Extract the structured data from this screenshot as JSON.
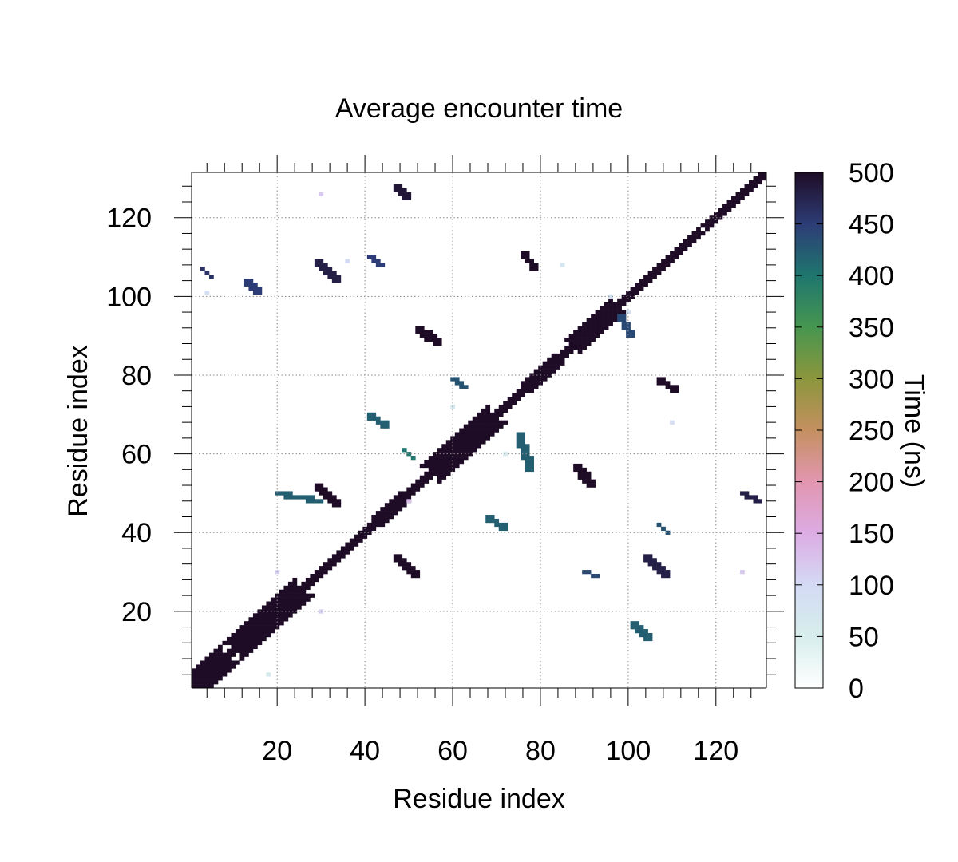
{
  "chart_data": {
    "type": "heatmap",
    "title": "Average encounter time",
    "xlabel": "Residue index",
    "ylabel": "Residue index",
    "xlim": [
      1,
      131
    ],
    "ylim": [
      1,
      131
    ],
    "x_ticks": [
      20,
      40,
      60,
      80,
      100,
      120
    ],
    "y_ticks": [
      20,
      40,
      60,
      80,
      100,
      120
    ],
    "grid": true,
    "colorbar": {
      "label": "Time (ns)",
      "min": 0,
      "max": 500,
      "ticks": [
        0,
        50,
        100,
        150,
        200,
        250,
        300,
        350,
        400,
        450,
        500
      ]
    },
    "diagonal": {
      "value": 500,
      "segments": [
        {
          "from": 1,
          "to": 5,
          "half_width": 1
        },
        {
          "from": 3,
          "to": 7,
          "half_width": 4
        },
        {
          "from": 7,
          "to": 12,
          "half_width": 1
        },
        {
          "from": 12,
          "to": 24,
          "half_width": 4
        },
        {
          "from": 24,
          "to": 44,
          "half_width": 1
        },
        {
          "from": 44,
          "to": 48,
          "half_width": 2
        },
        {
          "from": 48,
          "to": 57,
          "half_width": 1
        },
        {
          "from": 57,
          "to": 68,
          "half_width": 4
        },
        {
          "from": 68,
          "to": 78,
          "half_width": 1
        },
        {
          "from": 78,
          "to": 83,
          "half_width": 2
        },
        {
          "from": 83,
          "to": 89,
          "half_width": 1
        },
        {
          "from": 89,
          "to": 96,
          "half_width": 3
        },
        {
          "from": 96,
          "to": 116,
          "half_width": 1
        },
        {
          "from": 118,
          "to": 131,
          "half_width": 1
        }
      ]
    },
    "contact_clusters": [
      {
        "x": [
          29,
          34
        ],
        "y": [
          47,
          52
        ],
        "value": 500
      },
      {
        "x": [
          47,
          52
        ],
        "y": [
          29,
          34
        ],
        "value": 500
      },
      {
        "x": [
          29,
          34
        ],
        "y": [
          104,
          109
        ],
        "value": 480
      },
      {
        "x": [
          104,
          109
        ],
        "y": [
          29,
          34
        ],
        "value": 480
      },
      {
        "x": [
          47,
          50
        ],
        "y": [
          125,
          128
        ],
        "value": 490
      },
      {
        "x": [
          76,
          79
        ],
        "y": [
          107,
          111
        ],
        "value": 500
      },
      {
        "x": [
          107,
          111
        ],
        "y": [
          76,
          79
        ],
        "value": 500
      },
      {
        "x": [
          52,
          57
        ],
        "y": [
          88,
          92
        ],
        "value": 500
      },
      {
        "x": [
          88,
          92
        ],
        "y": [
          52,
          57
        ],
        "value": 500
      },
      {
        "x": [
          126,
          130
        ],
        "y": [
          48,
          50
        ],
        "value": 480
      },
      {
        "x": [
          41,
          44
        ],
        "y": [
          108,
          110
        ],
        "value": 450
      },
      {
        "x": [
          3,
          5
        ],
        "y": [
          105,
          107
        ],
        "value": 460
      },
      {
        "x": [
          13,
          16
        ],
        "y": [
          101,
          104
        ],
        "value": 450
      },
      {
        "x": [
          60,
          63
        ],
        "y": [
          77,
          79
        ],
        "value": 430
      },
      {
        "x": [
          107,
          109
        ],
        "y": [
          40,
          42
        ],
        "value": 430
      },
      {
        "x": [
          68,
          72
        ],
        "y": [
          41,
          44
        ],
        "value": 420
      },
      {
        "x": [
          20,
          30
        ],
        "y": [
          48,
          50
        ],
        "value": 420
      },
      {
        "x": [
          90,
          93
        ],
        "y": [
          29,
          30
        ],
        "value": 440
      },
      {
        "x": [
          101,
          105
        ],
        "y": [
          13,
          17
        ],
        "value": 420
      },
      {
        "x": [
          98,
          101
        ],
        "y": [
          90,
          95
        ],
        "value": 440
      },
      {
        "x": [
          41,
          45
        ],
        "y": [
          67,
          70
        ],
        "value": 420
      },
      {
        "x": [
          49,
          51
        ],
        "y": [
          59,
          61
        ],
        "value": 400
      },
      {
        "x": [
          75,
          78
        ],
        "y": [
          56,
          65
        ],
        "value": 420
      }
    ],
    "light_points": [
      {
        "x": 20,
        "y": 30,
        "value": 110
      },
      {
        "x": 30,
        "y": 20,
        "value": 110
      },
      {
        "x": 36,
        "y": 109,
        "value": 100
      },
      {
        "x": 60,
        "y": 72,
        "value": 60
      },
      {
        "x": 72,
        "y": 60,
        "value": 60
      },
      {
        "x": 100,
        "y": 96,
        "value": 80
      },
      {
        "x": 96,
        "y": 100,
        "value": 80
      },
      {
        "x": 126,
        "y": 30,
        "value": 120
      },
      {
        "x": 30,
        "y": 126,
        "value": 120
      },
      {
        "x": 4,
        "y": 101,
        "value": 90
      },
      {
        "x": 85,
        "y": 108,
        "value": 70
      },
      {
        "x": 50,
        "y": 48,
        "value": 130
      },
      {
        "x": 110,
        "y": 68,
        "value": 90
      },
      {
        "x": 18,
        "y": 4,
        "value": 60
      }
    ]
  }
}
